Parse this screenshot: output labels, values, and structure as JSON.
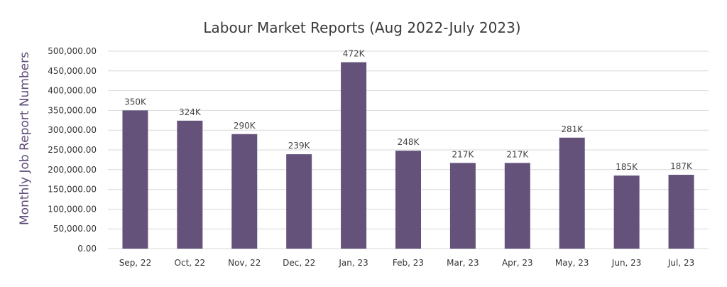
{
  "chart_data": {
    "type": "bar",
    "title": "Labour Market Reports (Aug 2022-July 2023)",
    "xlabel": "",
    "ylabel": "Monthly Job Report Numbers",
    "ylim": [
      0,
      500000
    ],
    "yticks": [
      "0.00",
      "50,000.00",
      "100,000.00",
      "150,000.00",
      "200,000.00",
      "250,000.00",
      "300,000.00",
      "350,000.00",
      "400,000.00",
      "450,000.00",
      "500,000.00"
    ],
    "categories": [
      "Sep, 22",
      "Oct, 22",
      "Nov, 22",
      "Dec, 22",
      "Jan, 23",
      "Feb, 23",
      "Mar, 23",
      "Apr, 23",
      "May, 23",
      "Jun, 23",
      "Jul, 23"
    ],
    "values": [
      350000,
      324000,
      290000,
      239000,
      472000,
      248000,
      217000,
      217000,
      281000,
      185000,
      187000
    ],
    "data_labels": [
      "350K",
      "324K",
      "290K",
      "239K",
      "472K",
      "248K",
      "217K",
      "217K",
      "281K",
      "185K",
      "187K"
    ],
    "grid": true,
    "legend": "none",
    "bar_color": "#64527b"
  }
}
